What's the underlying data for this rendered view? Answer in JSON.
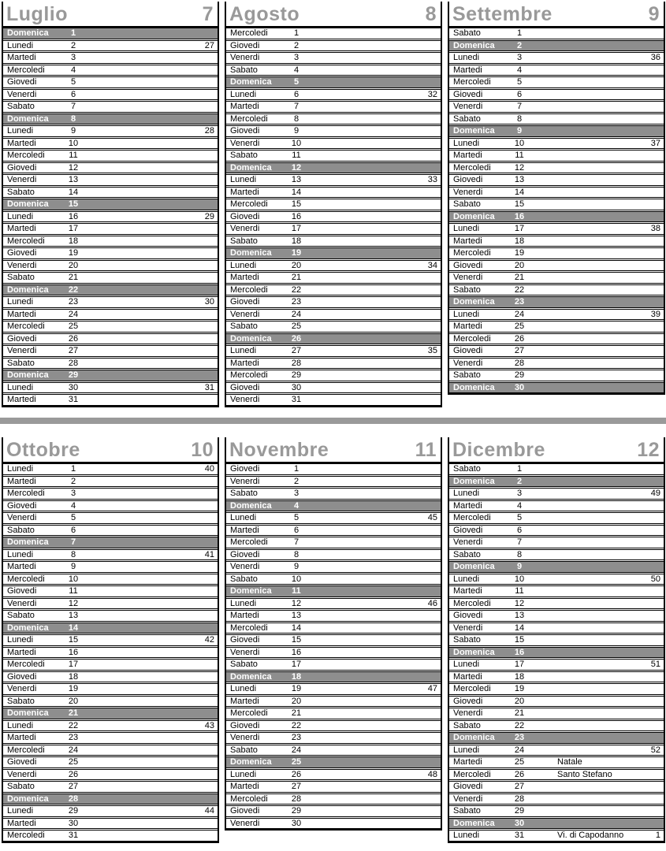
{
  "document": {
    "type": "calendar-page",
    "language": "it",
    "visible_half": "second-half-of-year"
  },
  "colors": {
    "month_title": "#999999",
    "sunday_row_bg": "#8e8e8e",
    "sunday_row_text": "#ffffff",
    "row_border": "#000000",
    "separator_bar": "#9a9a9a"
  },
  "separator": {
    "present": true
  },
  "months": [
    {
      "name": "Luglio",
      "number": "7",
      "days": [
        {
          "day": "Domenica",
          "date": "1"
        },
        {
          "day": "Lunedi",
          "date": "2",
          "week": "27"
        },
        {
          "day": "Martedi",
          "date": "3"
        },
        {
          "day": "Mercoledi",
          "date": "4"
        },
        {
          "day": "Giovedi",
          "date": "5"
        },
        {
          "day": "Venerdi",
          "date": "6"
        },
        {
          "day": "Sabato",
          "date": "7"
        },
        {
          "day": "Domenica",
          "date": "8"
        },
        {
          "day": "Lunedi",
          "date": "9",
          "week": "28"
        },
        {
          "day": "Martedi",
          "date": "10"
        },
        {
          "day": "Mercoledi",
          "date": "11"
        },
        {
          "day": "Giovedi",
          "date": "12"
        },
        {
          "day": "Venerdi",
          "date": "13"
        },
        {
          "day": "Sabato",
          "date": "14"
        },
        {
          "day": "Domenica",
          "date": "15"
        },
        {
          "day": "Lunedi",
          "date": "16",
          "week": "29"
        },
        {
          "day": "Martedi",
          "date": "17"
        },
        {
          "day": "Mercoledi",
          "date": "18"
        },
        {
          "day": "Giovedi",
          "date": "19"
        },
        {
          "day": "Venerdi",
          "date": "20"
        },
        {
          "day": "Sabato",
          "date": "21"
        },
        {
          "day": "Domenica",
          "date": "22"
        },
        {
          "day": "Lunedi",
          "date": "23",
          "week": "30"
        },
        {
          "day": "Martedi",
          "date": "24"
        },
        {
          "day": "Mercoledi",
          "date": "25"
        },
        {
          "day": "Giovedi",
          "date": "26"
        },
        {
          "day": "Venerdi",
          "date": "27"
        },
        {
          "day": "Sabato",
          "date": "28"
        },
        {
          "day": "Domenica",
          "date": "29"
        },
        {
          "day": "Lunedi",
          "date": "30",
          "week": "31"
        },
        {
          "day": "Martedi",
          "date": "31"
        }
      ]
    },
    {
      "name": "Agosto",
      "number": "8",
      "days": [
        {
          "day": "Mercoledi",
          "date": "1"
        },
        {
          "day": "Giovedi",
          "date": "2"
        },
        {
          "day": "Venerdi",
          "date": "3"
        },
        {
          "day": "Sabato",
          "date": "4"
        },
        {
          "day": "Domenica",
          "date": "5"
        },
        {
          "day": "Lunedi",
          "date": "6",
          "week": "32"
        },
        {
          "day": "Martedi",
          "date": "7"
        },
        {
          "day": "Mercoledi",
          "date": "8"
        },
        {
          "day": "Giovedi",
          "date": "9"
        },
        {
          "day": "Venerdi",
          "date": "10"
        },
        {
          "day": "Sabato",
          "date": "11"
        },
        {
          "day": "Domenica",
          "date": "12"
        },
        {
          "day": "Lunedi",
          "date": "13",
          "week": "33"
        },
        {
          "day": "Martedi",
          "date": "14"
        },
        {
          "day": "Mercoledi",
          "date": "15"
        },
        {
          "day": "Giovedi",
          "date": "16"
        },
        {
          "day": "Venerdi",
          "date": "17"
        },
        {
          "day": "Sabato",
          "date": "18"
        },
        {
          "day": "Domenica",
          "date": "19"
        },
        {
          "day": "Lunedi",
          "date": "20",
          "week": "34"
        },
        {
          "day": "Martedi",
          "date": "21"
        },
        {
          "day": "Mercoledi",
          "date": "22"
        },
        {
          "day": "Giovedi",
          "date": "23"
        },
        {
          "day": "Venerdi",
          "date": "24"
        },
        {
          "day": "Sabato",
          "date": "25"
        },
        {
          "day": "Domenica",
          "date": "26"
        },
        {
          "day": "Lunedi",
          "date": "27",
          "week": "35"
        },
        {
          "day": "Martedi",
          "date": "28"
        },
        {
          "day": "Mercoledi",
          "date": "29"
        },
        {
          "day": "Giovedi",
          "date": "30"
        },
        {
          "day": "Venerdi",
          "date": "31"
        }
      ]
    },
    {
      "name": "Settembre",
      "number": "9",
      "days": [
        {
          "day": "Sabato",
          "date": "1"
        },
        {
          "day": "Domenica",
          "date": "2"
        },
        {
          "day": "Lunedi",
          "date": "3",
          "week": "36"
        },
        {
          "day": "Martedi",
          "date": "4"
        },
        {
          "day": "Mercoledi",
          "date": "5"
        },
        {
          "day": "Giovedi",
          "date": "6"
        },
        {
          "day": "Venerdi",
          "date": "7"
        },
        {
          "day": "Sabato",
          "date": "8"
        },
        {
          "day": "Domenica",
          "date": "9"
        },
        {
          "day": "Lunedi",
          "date": "10",
          "week": "37"
        },
        {
          "day": "Martedi",
          "date": "11"
        },
        {
          "day": "Mercoledi",
          "date": "12"
        },
        {
          "day": "Giovedi",
          "date": "13"
        },
        {
          "day": "Venerdi",
          "date": "14"
        },
        {
          "day": "Sabato",
          "date": "15"
        },
        {
          "day": "Domenica",
          "date": "16"
        },
        {
          "day": "Lunedi",
          "date": "17",
          "week": "38"
        },
        {
          "day": "Martedi",
          "date": "18"
        },
        {
          "day": "Mercoledi",
          "date": "19"
        },
        {
          "day": "Giovedi",
          "date": "20"
        },
        {
          "day": "Venerdi",
          "date": "21"
        },
        {
          "day": "Sabato",
          "date": "22"
        },
        {
          "day": "Domenica",
          "date": "23"
        },
        {
          "day": "Lunedi",
          "date": "24",
          "week": "39"
        },
        {
          "day": "Martedi",
          "date": "25"
        },
        {
          "day": "Mercoledi",
          "date": "26"
        },
        {
          "day": "Giovedi",
          "date": "27"
        },
        {
          "day": "Venerdi",
          "date": "28"
        },
        {
          "day": "Sabato",
          "date": "29"
        },
        {
          "day": "Domenica",
          "date": "30"
        }
      ]
    },
    {
      "name": "Ottobre",
      "number": "10",
      "days": [
        {
          "day": "Lunedi",
          "date": "1",
          "week": "40"
        },
        {
          "day": "Martedi",
          "date": "2"
        },
        {
          "day": "Mercoledi",
          "date": "3"
        },
        {
          "day": "Giovedi",
          "date": "4"
        },
        {
          "day": "Venerdi",
          "date": "5"
        },
        {
          "day": "Sabato",
          "date": "6"
        },
        {
          "day": "Domenica",
          "date": "7"
        },
        {
          "day": "Lunedi",
          "date": "8",
          "week": "41"
        },
        {
          "day": "Martedi",
          "date": "9"
        },
        {
          "day": "Mercoledi",
          "date": "10"
        },
        {
          "day": "Giovedi",
          "date": "11"
        },
        {
          "day": "Venerdi",
          "date": "12"
        },
        {
          "day": "Sabato",
          "date": "13"
        },
        {
          "day": "Domenica",
          "date": "14"
        },
        {
          "day": "Lunedi",
          "date": "15",
          "week": "42"
        },
        {
          "day": "Martedi",
          "date": "16"
        },
        {
          "day": "Mercoledi",
          "date": "17"
        },
        {
          "day": "Giovedi",
          "date": "18"
        },
        {
          "day": "Venerdi",
          "date": "19"
        },
        {
          "day": "Sabato",
          "date": "20"
        },
        {
          "day": "Domenica",
          "date": "21"
        },
        {
          "day": "Lunedi",
          "date": "22",
          "week": "43"
        },
        {
          "day": "Martedi",
          "date": "23"
        },
        {
          "day": "Mercoledi",
          "date": "24"
        },
        {
          "day": "Giovedi",
          "date": "25"
        },
        {
          "day": "Venerdi",
          "date": "26"
        },
        {
          "day": "Sabato",
          "date": "27"
        },
        {
          "day": "Domenica",
          "date": "28"
        },
        {
          "day": "Lunedi",
          "date": "29",
          "week": "44"
        },
        {
          "day": "Martedi",
          "date": "30"
        },
        {
          "day": "Mercoledi",
          "date": "31"
        }
      ]
    },
    {
      "name": "Novembre",
      "number": "11",
      "days": [
        {
          "day": "Giovedi",
          "date": "1"
        },
        {
          "day": "Venerdi",
          "date": "2"
        },
        {
          "day": "Sabato",
          "date": "3"
        },
        {
          "day": "Domenica",
          "date": "4"
        },
        {
          "day": "Lunedi",
          "date": "5",
          "week": "45"
        },
        {
          "day": "Martedi",
          "date": "6"
        },
        {
          "day": "Mercoledi",
          "date": "7"
        },
        {
          "day": "Giovedi",
          "date": "8"
        },
        {
          "day": "Venerdi",
          "date": "9"
        },
        {
          "day": "Sabato",
          "date": "10"
        },
        {
          "day": "Domenica",
          "date": "11"
        },
        {
          "day": "Lunedi",
          "date": "12",
          "week": "46"
        },
        {
          "day": "Martedi",
          "date": "13"
        },
        {
          "day": "Mercoledi",
          "date": "14"
        },
        {
          "day": "Giovedi",
          "date": "15"
        },
        {
          "day": "Venerdi",
          "date": "16"
        },
        {
          "day": "Sabato",
          "date": "17"
        },
        {
          "day": "Domenica",
          "date": "18"
        },
        {
          "day": "Lunedi",
          "date": "19",
          "week": "47"
        },
        {
          "day": "Martedi",
          "date": "20"
        },
        {
          "day": "Mercoledi",
          "date": "21"
        },
        {
          "day": "Giovedi",
          "date": "22"
        },
        {
          "day": "Venerdi",
          "date": "23"
        },
        {
          "day": "Sabato",
          "date": "24"
        },
        {
          "day": "Domenica",
          "date": "25"
        },
        {
          "day": "Lunedi",
          "date": "26",
          "week": "48"
        },
        {
          "day": "Martedi",
          "date": "27"
        },
        {
          "day": "Mercoledi",
          "date": "28"
        },
        {
          "day": "Giovedi",
          "date": "29"
        },
        {
          "day": "Venerdi",
          "date": "30"
        }
      ]
    },
    {
      "name": "Dicembre",
      "number": "12",
      "days": [
        {
          "day": "Sabato",
          "date": "1"
        },
        {
          "day": "Domenica",
          "date": "2"
        },
        {
          "day": "Lunedi",
          "date": "3",
          "week": "49"
        },
        {
          "day": "Martedi",
          "date": "4"
        },
        {
          "day": "Mercoledi",
          "date": "5"
        },
        {
          "day": "Giovedi",
          "date": "6"
        },
        {
          "day": "Venerdi",
          "date": "7"
        },
        {
          "day": "Sabato",
          "date": "8"
        },
        {
          "day": "Domenica",
          "date": "9"
        },
        {
          "day": "Lunedi",
          "date": "10",
          "week": "50"
        },
        {
          "day": "Martedi",
          "date": "11"
        },
        {
          "day": "Mercoledi",
          "date": "12"
        },
        {
          "day": "Giovedi",
          "date": "13"
        },
        {
          "day": "Venerdi",
          "date": "14"
        },
        {
          "day": "Sabato",
          "date": "15"
        },
        {
          "day": "Domenica",
          "date": "16"
        },
        {
          "day": "Lunedi",
          "date": "17",
          "week": "51"
        },
        {
          "day": "Martedi",
          "date": "18"
        },
        {
          "day": "Mercoledi",
          "date": "19"
        },
        {
          "day": "Giovedi",
          "date": "20"
        },
        {
          "day": "Venerdi",
          "date": "21"
        },
        {
          "day": "Sabato",
          "date": "22"
        },
        {
          "day": "Domenica",
          "date": "23"
        },
        {
          "day": "Lunedi",
          "date": "24",
          "week": "52"
        },
        {
          "day": "Martedi",
          "date": "25",
          "holiday": "Natale"
        },
        {
          "day": "Mercoledi",
          "date": "26",
          "holiday": "Santo Stefano"
        },
        {
          "day": "Giovedi",
          "date": "27"
        },
        {
          "day": "Venerdi",
          "date": "28"
        },
        {
          "day": "Sabato",
          "date": "29"
        },
        {
          "day": "Domenica",
          "date": "30"
        },
        {
          "day": "Lunedi",
          "date": "31",
          "holiday": "Vi. di Capodanno",
          "week": "1"
        }
      ]
    }
  ]
}
